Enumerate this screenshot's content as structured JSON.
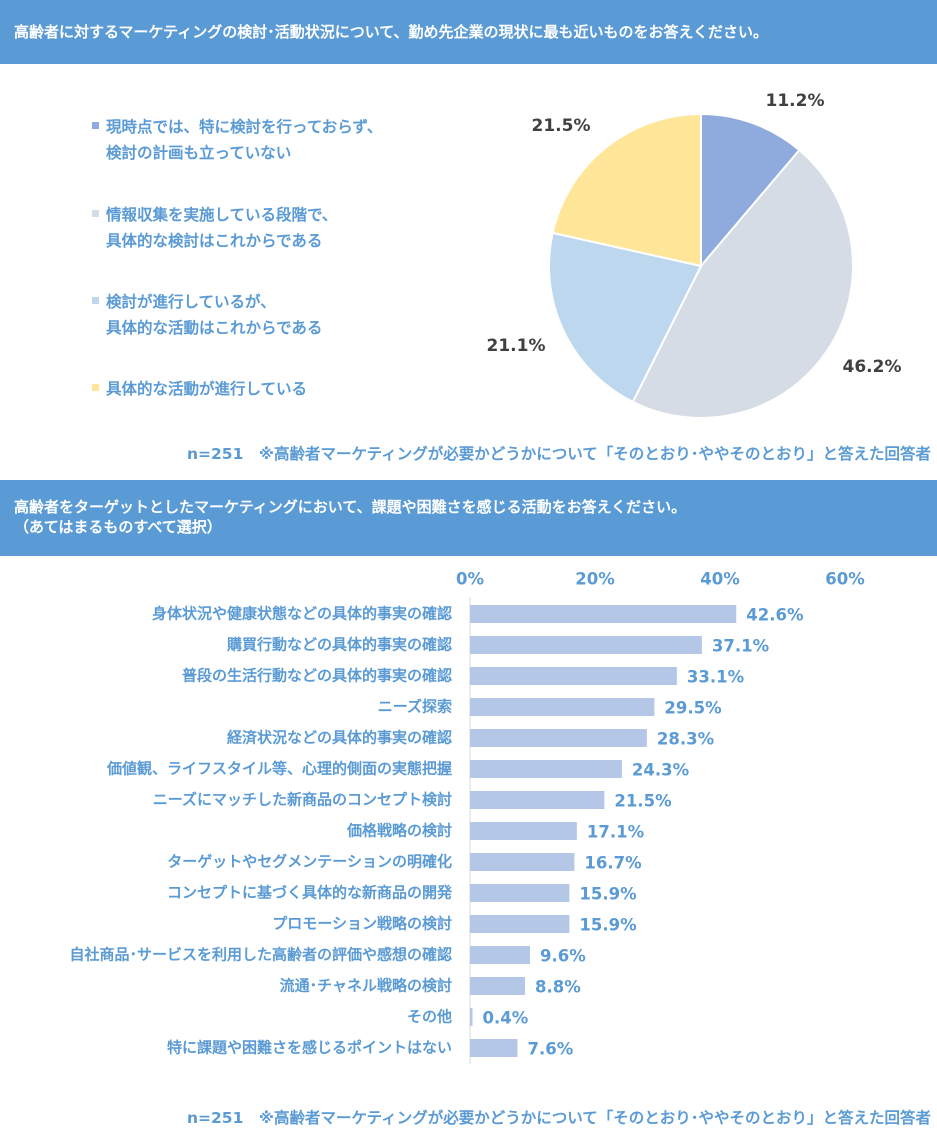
{
  "chart_data": [
    {
      "type": "pie",
      "title": "高齢者に対するマーケティングの検討･活動状況について、勤め先企業の現状に最も近いものをお答えください。",
      "slices": [
        {
          "label": "現時点では、特に検討を行っておらず、\n検討の計画も立っていない",
          "value": 11.2,
          "display": "11.2%",
          "color": "#8faadc"
        },
        {
          "label": "情報収集を実施している段階で、\n具体的な検討はこれからである",
          "value": 46.2,
          "display": "46.2%",
          "color": "#d6dce5"
        },
        {
          "label": "検討が進行しているが、\n具体的な活動はこれからである",
          "value": 21.1,
          "display": "21.1%",
          "color": "#bdd7ee"
        },
        {
          "label": "具体的な活動が進行している",
          "value": 21.5,
          "display": "21.5%",
          "color": "#ffe699"
        }
      ],
      "legend_position": "left",
      "note": "n=251　※高齢者マーケティングが必要かどうかについて「そのとおり･ややそのとおり」と答えた回答者"
    },
    {
      "type": "bar",
      "orientation": "horizontal",
      "title": "高齢者をターゲットとしたマーケティングにおいて、課題や困難さを感じる活動をお答えください。\n（あてはまるものすべて選択）",
      "categories": [
        "身体状況や健康状態などの具体的事実の確認",
        "購買行動などの具体的事実の確認",
        "普段の生活行動などの具体的事実の確認",
        "ニーズ探索",
        "経済状況などの具体的事実の確認",
        "価値観、ライフスタイル等、心理的側面の実態把握",
        "ニーズにマッチした新商品のコンセプト検討",
        "価格戦略の検討",
        "ターゲットやセグメンテーションの明確化",
        "コンセプトに基づく具体的な新商品の開発",
        "プロモーション戦略の検討",
        "自社商品･サービスを利用した高齢者の評価や感想の確認",
        "流通･チャネル戦略の検討",
        "その他",
        "特に課題や困難さを感じるポイントはない"
      ],
      "values": [
        42.6,
        37.1,
        33.1,
        29.5,
        28.3,
        24.3,
        21.5,
        17.1,
        16.7,
        15.9,
        15.9,
        9.6,
        8.8,
        0.4,
        7.6
      ],
      "value_labels": [
        "42.6%",
        "37.1%",
        "33.1%",
        "29.5%",
        "28.3%",
        "24.3%",
        "21.5%",
        "17.1%",
        "16.7%",
        "15.9%",
        "15.9%",
        "9.6%",
        "8.8%",
        "0.4%",
        "7.6%"
      ],
      "xlim": [
        0,
        60
      ],
      "ticks": [
        "0%",
        "20%",
        "40%",
        "60%"
      ],
      "tick_values": [
        0,
        20,
        40,
        60
      ],
      "bar_color": "#b4c7e7",
      "grid": false,
      "note": "n=251　※高齢者マーケティングが必要かどうかについて「そのとおり･ややそのとおり」と答えた回答者"
    }
  ]
}
